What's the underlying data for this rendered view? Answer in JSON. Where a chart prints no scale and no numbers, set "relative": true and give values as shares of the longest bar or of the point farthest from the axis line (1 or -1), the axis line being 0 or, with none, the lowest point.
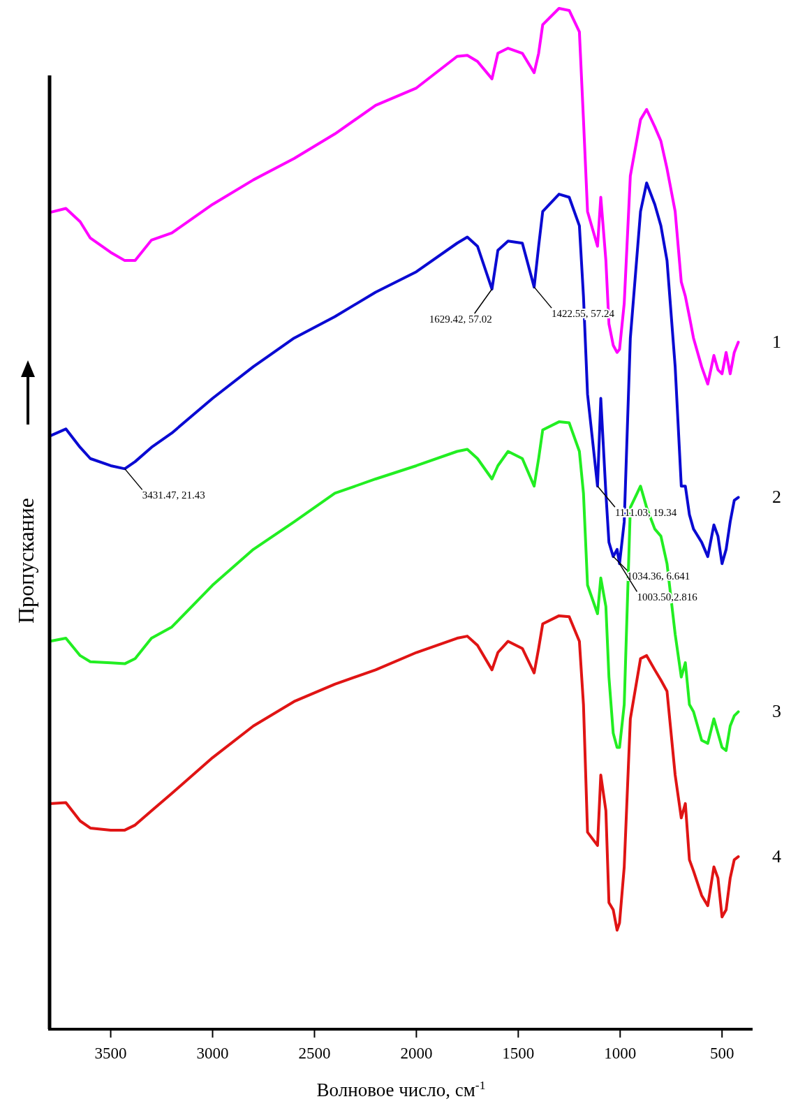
{
  "chart_data": {
    "type": "line",
    "relative": true,
    "xlabel": "Волновое число, см$^{-1}$",
    "ylabel": "Пропускание",
    "xlim": [
      3800,
      350
    ],
    "xticks": [
      3500,
      3000,
      2500,
      2000,
      1500,
      1000,
      500
    ],
    "x": [
      3800,
      3720,
      3650,
      3600,
      3500,
      3431,
      3380,
      3300,
      3200,
      3000,
      2800,
      2600,
      2400,
      2200,
      2000,
      1800,
      1750,
      1700,
      1629,
      1600,
      1550,
      1480,
      1422,
      1400,
      1380,
      1300,
      1250,
      1200,
      1180,
      1160,
      1111,
      1095,
      1070,
      1055,
      1034,
      1015,
      1003,
      980,
      950,
      900,
      870,
      830,
      800,
      770,
      730,
      700,
      680,
      660,
      640,
      600,
      570,
      540,
      520,
      500,
      480,
      460,
      440,
      420
    ],
    "series": [
      {
        "name": "1",
        "color": "#ff00ff",
        "values": [
          0.8,
          0.804,
          0.791,
          0.775,
          0.761,
          0.753,
          0.753,
          0.773,
          0.78,
          0.808,
          0.832,
          0.853,
          0.877,
          0.905,
          0.922,
          0.953,
          0.954,
          0.948,
          0.931,
          0.956,
          0.961,
          0.956,
          0.937,
          0.956,
          0.984,
          1.0,
          0.998,
          0.977,
          0.891,
          0.801,
          0.767,
          0.815,
          0.753,
          0.691,
          0.67,
          0.663,
          0.666,
          0.711,
          0.836,
          0.891,
          0.901,
          0.884,
          0.87,
          0.843,
          0.801,
          0.732,
          0.718,
          0.698,
          0.677,
          0.649,
          0.632,
          0.66,
          0.646,
          0.642,
          0.663,
          0.642,
          0.663,
          0.673
        ]
      },
      {
        "name": "2",
        "color": "#0a0ad2",
        "values": [
          0.581,
          0.588,
          0.57,
          0.559,
          0.552,
          0.549,
          0.556,
          0.57,
          0.584,
          0.618,
          0.649,
          0.677,
          0.698,
          0.722,
          0.742,
          0.77,
          0.776,
          0.767,
          0.725,
          0.763,
          0.772,
          0.77,
          0.727,
          0.767,
          0.801,
          0.818,
          0.815,
          0.787,
          0.718,
          0.622,
          0.532,
          0.618,
          0.525,
          0.477,
          0.463,
          0.47,
          0.456,
          0.497,
          0.677,
          0.801,
          0.829,
          0.808,
          0.787,
          0.753,
          0.649,
          0.532,
          0.532,
          0.504,
          0.49,
          0.477,
          0.463,
          0.494,
          0.483,
          0.456,
          0.47,
          0.497,
          0.518,
          0.521
        ]
      },
      {
        "name": "3",
        "color": "#22ee22",
        "values": [
          0.38,
          0.383,
          0.366,
          0.36,
          0.359,
          0.358,
          0.363,
          0.383,
          0.394,
          0.435,
          0.47,
          0.497,
          0.525,
          0.539,
          0.552,
          0.566,
          0.568,
          0.559,
          0.539,
          0.552,
          0.566,
          0.559,
          0.532,
          0.559,
          0.587,
          0.595,
          0.594,
          0.566,
          0.525,
          0.435,
          0.407,
          0.442,
          0.414,
          0.345,
          0.29,
          0.276,
          0.276,
          0.318,
          0.511,
          0.532,
          0.511,
          0.49,
          0.483,
          0.456,
          0.387,
          0.345,
          0.359,
          0.318,
          0.311,
          0.283,
          0.28,
          0.304,
          0.29,
          0.276,
          0.273,
          0.297,
          0.307,
          0.311
        ]
      },
      {
        "name": "4",
        "color": "#e01414",
        "values": [
          0.221,
          0.222,
          0.204,
          0.197,
          0.195,
          0.195,
          0.2,
          0.214,
          0.231,
          0.266,
          0.297,
          0.321,
          0.338,
          0.352,
          0.369,
          0.383,
          0.385,
          0.376,
          0.352,
          0.369,
          0.38,
          0.373,
          0.349,
          0.373,
          0.397,
          0.405,
          0.404,
          0.38,
          0.318,
          0.193,
          0.18,
          0.249,
          0.214,
          0.124,
          0.117,
          0.097,
          0.104,
          0.159,
          0.304,
          0.363,
          0.366,
          0.352,
          0.342,
          0.331,
          0.249,
          0.207,
          0.221,
          0.166,
          0.155,
          0.131,
          0.121,
          0.159,
          0.148,
          0.11,
          0.117,
          0.148,
          0.166,
          0.169
        ]
      }
    ],
    "annotations": [
      {
        "text": "3431.47, 21.43",
        "x": 3431,
        "y": 0.549
      },
      {
        "text": "1629.42, 57.02",
        "x": 1629,
        "y": 0.725
      },
      {
        "text": "1422.55, 57.24",
        "x": 1422,
        "y": 0.727
      },
      {
        "text": "1111.03, 19.34",
        "x": 1111,
        "y": 0.532
      },
      {
        "text": "1034.36, 6.641",
        "x": 1034,
        "y": 0.463
      },
      {
        "text": "1003.50,2.816",
        "x": 1003,
        "y": 0.456
      }
    ]
  }
}
